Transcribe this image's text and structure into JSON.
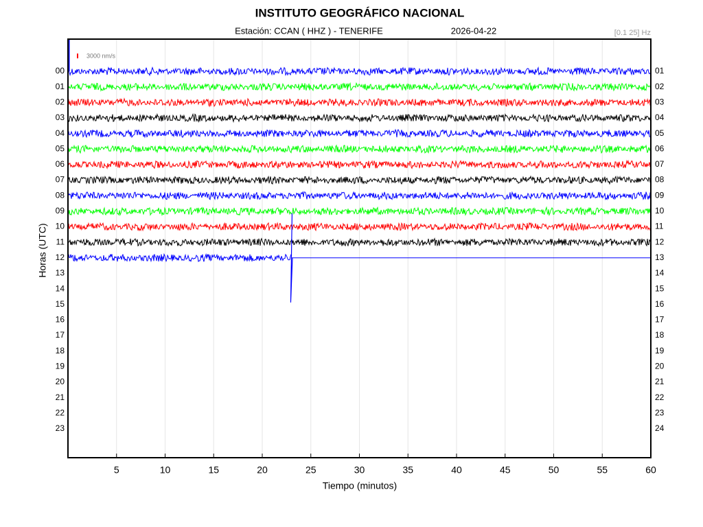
{
  "chart_data": {
    "type": "helicorder",
    "title": "INSTITUTO GEOGRÁFICO NACIONAL",
    "station": "Estación:  CCAN ( HHZ ) - TENERIFE",
    "date": "2026-04-22",
    "filter": "[0.1 25] Hz",
    "scale_label": "3000 nm/s",
    "xlabel": "Tiempo (minutos)",
    "ylabel": "Horas (UTC)",
    "xlim": [
      0,
      60
    ],
    "xticks": [
      5,
      10,
      15,
      20,
      25,
      30,
      35,
      40,
      45,
      50,
      55,
      60
    ],
    "grid": true,
    "left_labels": [
      "00",
      "01",
      "02",
      "03",
      "04",
      "05",
      "06",
      "07",
      "08",
      "09",
      "10",
      "11",
      "12",
      "13",
      "14",
      "15",
      "16",
      "17",
      "18",
      "19",
      "20",
      "21",
      "22",
      "23"
    ],
    "right_labels": [
      "01",
      "02",
      "03",
      "04",
      "05",
      "06",
      "07",
      "08",
      "09",
      "10",
      "11",
      "12",
      "13",
      "14",
      "15",
      "16",
      "17",
      "18",
      "19",
      "20",
      "21",
      "22",
      "23",
      "24"
    ],
    "traces": [
      {
        "color": "#0000ff",
        "end": 60
      },
      {
        "color": "#00ff00",
        "end": 60
      },
      {
        "color": "#ff0000",
        "end": 60
      },
      {
        "color": "#000000",
        "end": 60
      },
      {
        "color": "#0000ff",
        "end": 60
      },
      {
        "color": "#00ff00",
        "end": 60
      },
      {
        "color": "#ff0000",
        "end": 60
      },
      {
        "color": "#000000",
        "end": 60
      },
      {
        "color": "#0000ff",
        "end": 60
      },
      {
        "color": "#00ff00",
        "end": 60
      },
      {
        "color": "#ff0000",
        "end": 60
      },
      {
        "color": "#000000",
        "end": 60
      },
      {
        "color": "#0000ff",
        "end": 23
      }
    ]
  }
}
